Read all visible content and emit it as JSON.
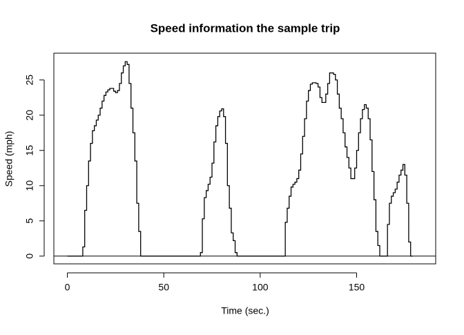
{
  "chart_data": {
    "type": "step",
    "title": "Speed information the sample trip",
    "x_label": "Time (sec.)",
    "y_label": "Speed (mph)",
    "x": [
      0,
      1,
      2,
      3,
      4,
      5,
      6,
      7,
      8,
      9,
      10,
      11,
      12,
      13,
      14,
      15,
      16,
      17,
      18,
      19,
      20,
      21,
      22,
      23,
      24,
      25,
      26,
      27,
      28,
      29,
      30,
      31,
      32,
      33,
      34,
      35,
      36,
      37,
      38,
      39,
      40,
      41,
      42,
      43,
      44,
      45,
      46,
      47,
      48,
      49,
      50,
      51,
      52,
      53,
      54,
      55,
      56,
      57,
      58,
      59,
      60,
      61,
      62,
      63,
      64,
      65,
      66,
      67,
      68,
      69,
      70,
      71,
      72,
      73,
      74,
      75,
      76,
      77,
      78,
      79,
      80,
      81,
      82,
      83,
      84,
      85,
      86,
      87,
      88,
      89,
      90,
      91,
      92,
      93,
      94,
      95,
      96,
      97,
      98,
      99,
      100,
      101,
      102,
      103,
      104,
      105,
      106,
      107,
      108,
      109,
      110,
      111,
      112,
      113,
      114,
      115,
      116,
      117,
      118,
      119,
      120,
      121,
      122,
      123,
      124,
      125,
      126,
      127,
      128,
      129,
      130,
      131,
      132,
      133,
      134,
      135,
      136,
      137,
      138,
      139,
      140,
      141,
      142,
      143,
      144,
      145,
      146,
      147,
      148,
      149,
      150,
      151,
      152,
      153,
      154,
      155,
      156,
      157,
      158,
      159,
      160,
      161,
      162,
      163,
      164,
      165,
      166,
      167,
      168,
      169,
      170,
      171,
      172,
      173,
      174,
      175,
      176,
      177,
      178,
      179
    ],
    "values": [
      0,
      0,
      0,
      0,
      0,
      0,
      0,
      0,
      1.3,
      6.5,
      10,
      13.5,
      16,
      17.8,
      18.5,
      19.3,
      20,
      21,
      22,
      22.8,
      23.3,
      23.6,
      23.8,
      23.8,
      23.4,
      23.2,
      23.5,
      24.5,
      26,
      27,
      27.6,
      27.2,
      24.5,
      21,
      17.5,
      13.5,
      7.5,
      3.5,
      0,
      0,
      0,
      0,
      0,
      0,
      0,
      0,
      0,
      0,
      0,
      0,
      0,
      0,
      0,
      0,
      0,
      0,
      0,
      0,
      0,
      0,
      0,
      0,
      0,
      0,
      0,
      0,
      0,
      0,
      0,
      0.5,
      5.3,
      8.3,
      9.3,
      10.2,
      11.2,
      13.2,
      16.2,
      18.5,
      19.8,
      20.6,
      20.9,
      19.8,
      16,
      10,
      6.8,
      3.3,
      2.2,
      0.5,
      0,
      0,
      0,
      0,
      0,
      0,
      0,
      0,
      0,
      0,
      0,
      0,
      0,
      0,
      0,
      0,
      0,
      0,
      0,
      0,
      0,
      0,
      0,
      0,
      0,
      4.8,
      6.8,
      8.5,
      9.8,
      10.2,
      10.5,
      11,
      12.2,
      14.5,
      17,
      19.5,
      22,
      23.5,
      24.4,
      24.6,
      24.6,
      24.5,
      24,
      22.5,
      21.8,
      21.8,
      23,
      24.5,
      26,
      26,
      25.8,
      25,
      23,
      21,
      19.5,
      17.5,
      15.5,
      14,
      12.5,
      11,
      11,
      12.5,
      15,
      17.5,
      19.5,
      20.8,
      21.5,
      21,
      19.5,
      16.5,
      12,
      8,
      3.5,
      1.5,
      0,
      0,
      0,
      0,
      4.5,
      7.5,
      8.5,
      9,
      9.5,
      10.5,
      11.5,
      12.2,
      13,
      11.5,
      7.5,
      2,
      0,
      0
    ],
    "color": "#000000",
    "hline": 0,
    "xlim": [
      -7,
      191
    ],
    "ylim": [
      -1.1,
      28.8
    ],
    "xticks": [
      0,
      50,
      100,
      150
    ],
    "yticks": [
      0,
      5,
      10,
      15,
      20,
      25
    ]
  }
}
